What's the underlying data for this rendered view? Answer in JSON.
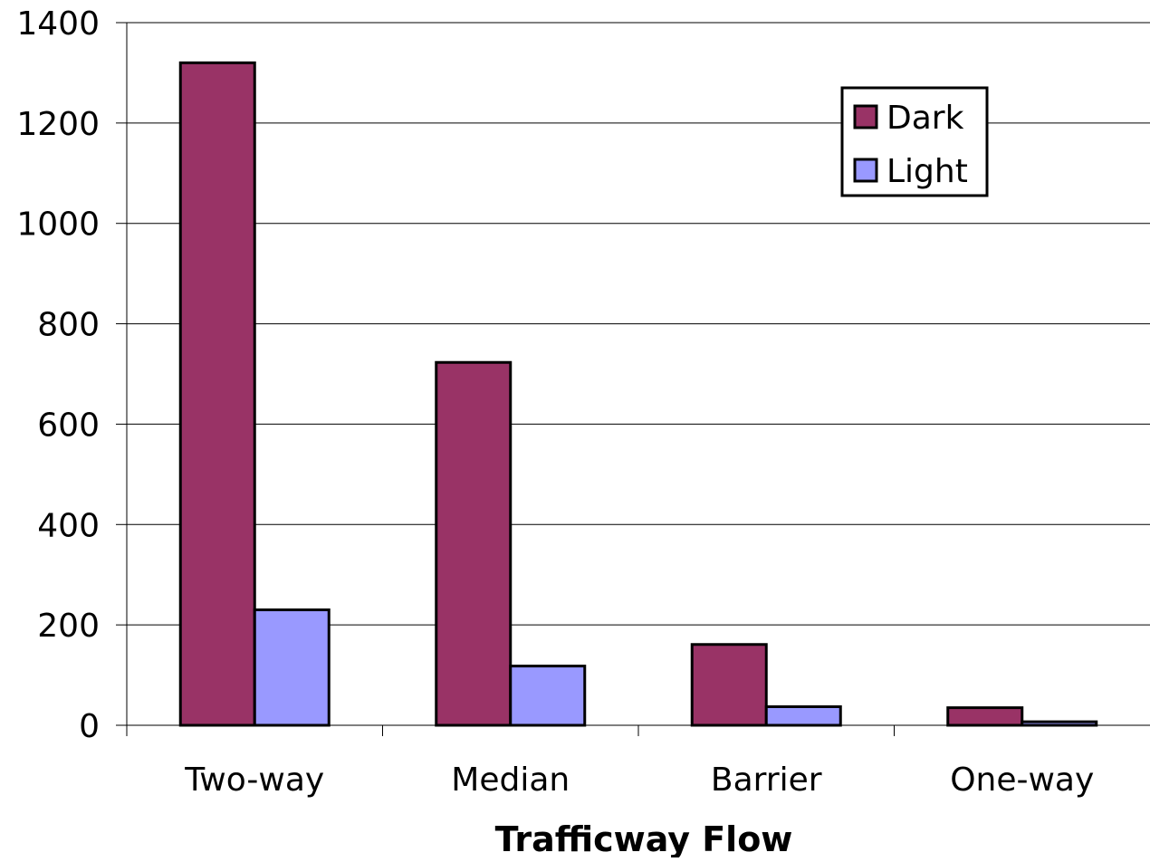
{
  "chart_data": {
    "type": "bar",
    "title": "",
    "xlabel": "Trafficway Flow",
    "ylabel": "",
    "categories": [
      "Two-way",
      "Median",
      "Barrier",
      "One-way"
    ],
    "series": [
      {
        "name": "Dark",
        "values": [
          1320,
          723,
          161,
          35
        ],
        "color": "#993366"
      },
      {
        "name": "Light",
        "values": [
          230,
          118,
          37,
          7
        ],
        "color": "#9999ff"
      }
    ],
    "ylim": [
      0,
      1400
    ],
    "yticks": [
      "0",
      "200",
      "400",
      "600",
      "800",
      "1000",
      "1200",
      "1400"
    ],
    "grid": true,
    "legend_position": "top-right"
  }
}
